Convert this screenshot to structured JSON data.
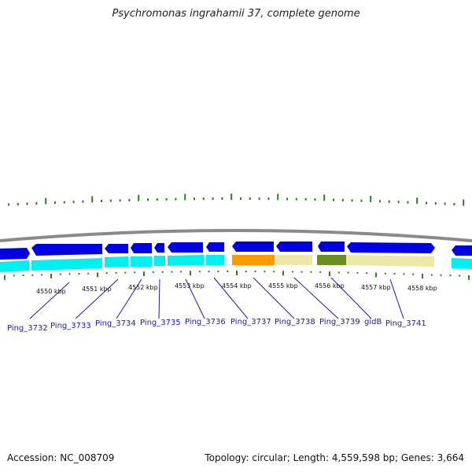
{
  "title": "Psychromonas ingrahamii 37, complete genome",
  "footer": {
    "accession": "Accession: NC_008709",
    "summary": "Topology: circular; Length: 4,559,598 bp; Genes: 3,664"
  },
  "colors": {
    "backbone": "#8a8a8a",
    "cds_forward": "#0000e0",
    "cds_band": "#00f0f0",
    "tick": "#2e7d1e",
    "orange": "#ff9900",
    "khaki": "#eee8a8",
    "olive": "#6b8e23",
    "label": "#1a1aaa"
  },
  "scale": {
    "ticks": [
      "4550 kbp",
      "4551 kbp",
      "4552 kbp",
      "4553 kbp",
      "4554 kbp",
      "4555 kbp",
      "4556 kbp",
      "4557 kbp",
      "4558 kbp"
    ]
  },
  "genes": [
    {
      "name": "Ping_3732"
    },
    {
      "name": "Ping_3733"
    },
    {
      "name": "Ping_3734"
    },
    {
      "name": "Ping_3735"
    },
    {
      "name": "Ping_3736"
    },
    {
      "name": "Ping_3737"
    },
    {
      "name": "Ping_3738"
    },
    {
      "name": "Ping_3739"
    },
    {
      "name": "gidB"
    },
    {
      "name": "Ping_3741"
    }
  ]
}
